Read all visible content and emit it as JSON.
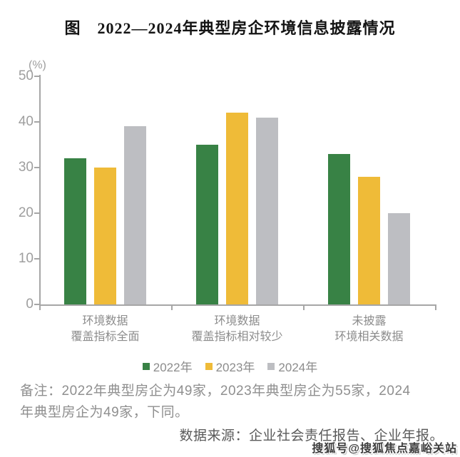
{
  "page": {
    "title": "图　2022—2024年典型房企环境信息披露情况",
    "note_lines": [
      "备注：2022年典型房企为49家，2023年典型房企为55家，2024",
      "年典型房企为49家，下同。"
    ],
    "source": "数据来源：企业社会责任报告、企业年报。",
    "watermark": "搜狐号@搜狐焦点嘉峪关站"
  },
  "chart_data": {
    "type": "bar",
    "title": "图 2022—2024年典型房企环境信息披露情况",
    "unit_label": "(%)",
    "categories": [
      "环境数据\n覆盖指标全面",
      "环境数据\n覆盖指标相对较少",
      "未披露\n环境相关数据"
    ],
    "series": [
      {
        "name": "2022年",
        "color": "#388245",
        "values": [
          32,
          35,
          33
        ]
      },
      {
        "name": "2023年",
        "color": "#efbb38",
        "values": [
          30,
          42,
          28
        ]
      },
      {
        "name": "2024年",
        "color": "#bdbec2",
        "values": [
          39,
          41,
          20
        ]
      }
    ],
    "ylabel": "(%)",
    "ylim": [
      0,
      50
    ],
    "yticks": [
      0,
      10,
      20,
      30,
      40,
      50
    ],
    "grid": false,
    "legend_position": "bottom"
  },
  "colors": {
    "axis": "#a6a6a6",
    "tick_label": "#9e9e9e",
    "category_label": "#8c8c8c",
    "note": "#8f8f8f",
    "source": "#595959",
    "title": "#141414",
    "watermark": "#3d3d3d"
  }
}
